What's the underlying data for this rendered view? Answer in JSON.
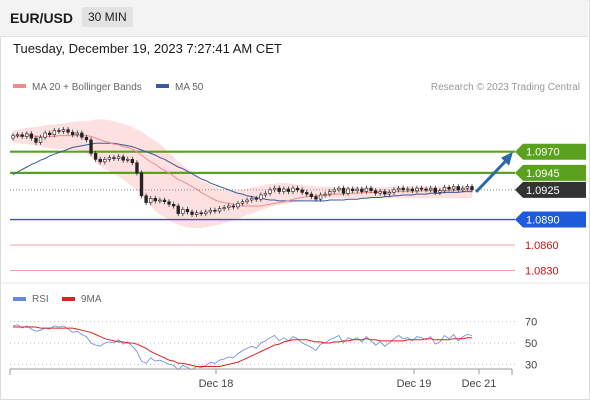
{
  "header": {
    "symbol": "EUR/USD",
    "interval": "30 MIN"
  },
  "datetime": "Tuesday, December 19, 2023 7:27:41 AM CET",
  "legend": {
    "ma20": {
      "label": "MA 20 + Bollinger Bands",
      "color": "#f08c8c"
    },
    "ma50": {
      "label": "MA 50",
      "color": "#3a5a9a"
    },
    "copyright": "Research © 2023 Trading Central"
  },
  "rsi_legend": {
    "rsi": {
      "label": "RSI",
      "color": "#6688dd"
    },
    "ma9": {
      "label": "9MA",
      "color": "#dd2222"
    }
  },
  "colors": {
    "resistance": "#5aa21e",
    "support": "#1e5adc",
    "target": "#f4a0a0",
    "current": "#333333",
    "arrow": "#2a6aa8",
    "band_fill": "#fde0e0"
  },
  "chart_data": [
    {
      "type": "candlestick",
      "x_ticks": [
        "Dec 18",
        "Dec 19",
        "Dec 21"
      ],
      "ylim": [
        1.082,
        1.101
      ],
      "close": [
        1.0989,
        1.099,
        1.0988,
        1.0991,
        1.0986,
        1.0981,
        1.0987,
        1.0992,
        1.099,
        1.0995,
        1.0994,
        1.0996,
        1.0993,
        1.099,
        1.0992,
        1.0987,
        1.0984,
        1.0968,
        1.0961,
        1.0958,
        1.0961,
        1.0963,
        1.0962,
        1.0964,
        1.096,
        1.0961,
        1.0957,
        1.0945,
        1.0918,
        1.091,
        1.0915,
        1.0912,
        1.0913,
        1.0911,
        1.0908,
        1.0906,
        1.0897,
        1.0902,
        1.0899,
        1.0896,
        1.0898,
        1.0897,
        1.0899,
        1.0901,
        1.09,
        1.0903,
        1.0904,
        1.0906,
        1.0905,
        1.0909,
        1.0911,
        1.0913,
        1.0915,
        1.0914,
        1.0919,
        1.0921,
        1.0925,
        1.0927,
        1.0923,
        1.0926,
        1.0923,
        1.0927,
        1.0925,
        1.0922,
        1.092,
        1.0917,
        1.0914,
        1.0919,
        1.092,
        1.0923,
        1.0925,
        1.0927,
        1.0921,
        1.0926,
        1.0924,
        1.0926,
        1.0923,
        1.0927,
        1.0924,
        1.0921,
        1.0923,
        1.092,
        1.0922,
        1.0925,
        1.0927,
        1.0925,
        1.0926,
        1.0924,
        1.0927,
        1.0926,
        1.0925,
        1.0927,
        1.0922,
        1.0924,
        1.0928,
        1.0926,
        1.0929,
        1.0925,
        1.0927,
        1.0929,
        1.0925
      ],
      "ma20": [
        1.0988,
        1.0988,
        1.0988,
        1.0989,
        1.0989,
        1.0988,
        1.0988,
        1.0988,
        1.0988,
        1.0988,
        1.0989,
        1.0989,
        1.0989,
        1.0989,
        1.0989,
        1.0989,
        1.0989,
        1.0988,
        1.0986,
        1.0984,
        1.0982,
        1.0981,
        1.0979,
        1.0978,
        1.0976,
        1.0975,
        1.0973,
        1.097,
        1.0966,
        1.0962,
        1.0958,
        1.0955,
        1.0951,
        1.0948,
        1.0945,
        1.0941,
        1.0937,
        1.0935,
        1.0932,
        1.0929,
        1.0926,
        1.0922,
        1.0919,
        1.0916,
        1.0913,
        1.0911,
        1.091,
        1.0909,
        1.0908,
        1.0907,
        1.0906,
        1.0906,
        1.0906,
        1.0906,
        1.0906,
        1.0907,
        1.0908,
        1.0909,
        1.091,
        1.0911,
        1.0912,
        1.0914,
        1.0915,
        1.0916,
        1.0917,
        1.0917,
        1.0918,
        1.0918,
        1.0919,
        1.0919,
        1.092,
        1.092,
        1.092,
        1.0921,
        1.0921,
        1.0921,
        1.0922,
        1.0922,
        1.0922,
        1.0922,
        1.0922,
        1.0923,
        1.0922,
        1.0923,
        1.0923,
        1.0923,
        1.0923,
        1.0923,
        1.0923,
        1.0924,
        1.0924,
        1.0924,
        1.0924,
        1.0924,
        1.0924,
        1.0924,
        1.0924,
        1.0925,
        1.0925,
        1.0925,
        1.0925
      ],
      "bb_upper": [
        1.0995,
        1.0996,
        1.0997,
        1.0998,
        1.0999,
        1.0999,
        1.1,
        1.1001,
        1.1002,
        1.1002,
        1.1003,
        1.1003,
        1.1004,
        1.1005,
        1.1006,
        1.1006,
        1.1006,
        1.1007,
        1.1008,
        1.1008,
        1.1008,
        1.1007,
        1.1006,
        1.1004,
        1.1003,
        1.1001,
        1.0999,
        1.0996,
        1.0994,
        1.099,
        1.0986,
        1.0983,
        1.0979,
        1.0974,
        1.0969,
        1.0964,
        1.0958,
        1.0954,
        1.095,
        1.0946,
        1.0942,
        1.0938,
        1.0934,
        1.0931,
        1.0928,
        1.0926,
        1.0925,
        1.0924,
        1.0924,
        1.0925,
        1.0925,
        1.0926,
        1.0928,
        1.0929,
        1.093,
        1.0931,
        1.0932,
        1.0932,
        1.0933,
        1.0933,
        1.0933,
        1.0932,
        1.0931,
        1.0931,
        1.093,
        1.093,
        1.0929,
        1.0929,
        1.0929,
        1.0929,
        1.0928,
        1.0928,
        1.0928,
        1.0928,
        1.0928,
        1.0928,
        1.0928,
        1.0928,
        1.0928,
        1.0928,
        1.0928,
        1.0928,
        1.0929,
        1.0929,
        1.0929,
        1.0929,
        1.0929,
        1.0929,
        1.0929,
        1.0929,
        1.0929,
        1.0929,
        1.0929,
        1.0929,
        1.0929,
        1.0929,
        1.0929,
        1.0929,
        1.0929,
        1.0929,
        1.0929
      ],
      "bb_lower": [
        1.0981,
        1.098,
        1.0979,
        1.0979,
        1.0978,
        1.0977,
        1.0976,
        1.0975,
        1.0974,
        1.0973,
        1.0973,
        1.0973,
        1.0972,
        1.0972,
        1.0972,
        1.0971,
        1.0968,
        1.0963,
        1.0958,
        1.0953,
        1.095,
        1.0947,
        1.0944,
        1.0941,
        1.0937,
        1.0933,
        1.0929,
        1.0924,
        1.0918,
        1.0912,
        1.0906,
        1.09,
        1.0896,
        1.0893,
        1.0889,
        1.0886,
        1.0884,
        1.0882,
        1.0881,
        1.088,
        1.088,
        1.088,
        1.0881,
        1.0882,
        1.0883,
        1.0884,
        1.0886,
        1.0887,
        1.0889,
        1.0891,
        1.0893,
        1.0895,
        1.0897,
        1.0899,
        1.0901,
        1.0903,
        1.0905,
        1.0906,
        1.0907,
        1.0908,
        1.0909,
        1.091,
        1.0911,
        1.0912,
        1.0913,
        1.0913,
        1.0914,
        1.0914,
        1.0915,
        1.0915,
        1.0915,
        1.0915,
        1.0915,
        1.0915,
        1.0915,
        1.0915,
        1.0915,
        1.0915,
        1.0915,
        1.0915,
        1.0915,
        1.0915,
        1.0915,
        1.0915,
        1.0915,
        1.0915,
        1.0915,
        1.0915,
        1.0915,
        1.0915,
        1.0915,
        1.0915,
        1.0915,
        1.0915,
        1.0915,
        1.0915,
        1.0915,
        1.0915,
        1.0915,
        1.0915,
        1.0915
      ],
      "ma50": [
        1.0943,
        1.0946,
        1.0949,
        1.0952,
        1.0955,
        1.0957,
        1.096,
        1.0962,
        1.0965,
        1.0967,
        1.0969,
        1.0971,
        1.0973,
        1.0975,
        1.0976,
        1.0977,
        1.0978,
        1.0979,
        1.098,
        1.098,
        1.098,
        1.098,
        1.098,
        1.0979,
        1.0978,
        1.0977,
        1.0976,
        1.0974,
        1.0972,
        1.097,
        1.0968,
        1.0966,
        1.0963,
        1.0961,
        1.0958,
        1.0955,
        1.0952,
        1.095,
        1.0947,
        1.0944,
        1.0941,
        1.0938,
        1.0936,
        1.0933,
        1.0931,
        1.0929,
        1.0927,
        1.0925,
        1.0923,
        1.0921,
        1.092,
        1.0918,
        1.0917,
        1.0916,
        1.0915,
        1.0914,
        1.0913,
        1.0913,
        1.0912,
        1.0912,
        1.0912,
        1.0912,
        1.0912,
        1.0912,
        1.0912,
        1.0912,
        1.0912,
        1.0912,
        1.0912,
        1.0913,
        1.0913,
        1.0913,
        1.0913,
        1.0914,
        1.0914,
        1.0914,
        1.0915,
        1.0915,
        1.0916,
        1.0916,
        1.0916,
        1.0917,
        1.0917,
        1.0918,
        1.0918,
        1.0919,
        1.0919,
        1.0919,
        1.092,
        1.092,
        1.092,
        1.0921,
        1.0921,
        1.0921,
        1.0922,
        1.0922,
        1.0922,
        1.0922,
        1.0923,
        1.0923,
        1.0923
      ],
      "levels": [
        {
          "value": 1.097,
          "label": "1.0970",
          "kind": "resistance",
          "style": "thick"
        },
        {
          "value": 1.0945,
          "label": "1.0945",
          "kind": "resistance",
          "style": "thick"
        },
        {
          "value": 1.0925,
          "label": "1.0925",
          "kind": "current",
          "style": "dotted"
        },
        {
          "value": 1.089,
          "label": "1.0890",
          "kind": "support",
          "style": "thin"
        },
        {
          "value": 1.086,
          "label": "1.0860",
          "kind": "target",
          "style": "thin"
        },
        {
          "value": 1.083,
          "label": "1.0830",
          "kind": "target",
          "style": "thin"
        }
      ],
      "projection": {
        "from": 1.0926,
        "to": 1.097
      }
    },
    {
      "type": "line",
      "ylim": [
        20,
        80
      ],
      "y_ticks": [
        70,
        50,
        30
      ],
      "rsi": [
        66,
        67,
        64,
        66,
        63,
        61,
        62,
        64,
        63,
        66,
        65,
        66,
        63,
        60,
        61,
        58,
        56,
        50,
        48,
        47,
        50,
        51,
        50,
        53,
        49,
        51,
        47,
        42,
        33,
        31,
        36,
        33,
        34,
        32,
        30,
        29,
        25,
        29,
        27,
        25,
        28,
        27,
        29,
        32,
        31,
        34,
        35,
        37,
        36,
        40,
        43,
        45,
        47,
        45,
        50,
        52,
        55,
        57,
        52,
        55,
        52,
        56,
        54,
        50,
        48,
        46,
        43,
        49,
        50,
        53,
        55,
        57,
        50,
        55,
        53,
        55,
        51,
        56,
        52,
        48,
        51,
        47,
        50,
        54,
        57,
        54,
        55,
        52,
        56,
        55,
        53,
        56,
        49,
        51,
        57,
        54,
        58,
        52,
        56,
        58,
        57
      ],
      "ma9": [
        65,
        65,
        65,
        65,
        65,
        65,
        64,
        64,
        64,
        64,
        64,
        64,
        64,
        64,
        63,
        62,
        61,
        60,
        58,
        56,
        54,
        53,
        52,
        51,
        51,
        50,
        50,
        49,
        47,
        45,
        42,
        40,
        38,
        36,
        34,
        33,
        31,
        31,
        30,
        29,
        28,
        28,
        28,
        28,
        28,
        28,
        29,
        30,
        31,
        32,
        34,
        36,
        38,
        40,
        42,
        44,
        46,
        48,
        49,
        51,
        52,
        53,
        53,
        53,
        53,
        52,
        51,
        51,
        50,
        50,
        51,
        51,
        52,
        52,
        53,
        53,
        53,
        54,
        53,
        53,
        52,
        52,
        52,
        52,
        52,
        52,
        53,
        53,
        53,
        53,
        54,
        54,
        53,
        53,
        53,
        53,
        54,
        54,
        54,
        55,
        55
      ]
    }
  ]
}
